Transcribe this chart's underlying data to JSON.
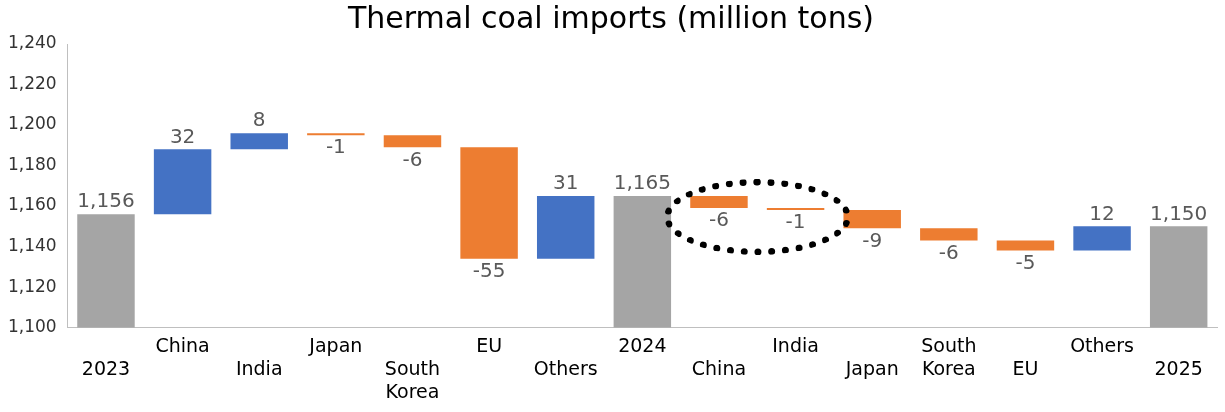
{
  "chart_data": {
    "type": "bar",
    "title": "Thermal coal imports (million tons)",
    "categories": [
      "2023",
      "China",
      "India",
      "Japan",
      "South Korea",
      "EU",
      "Others",
      "2024",
      "China",
      "India",
      "Japan",
      "South Korea",
      "EU",
      "Others",
      "2025"
    ],
    "values": [
      1156,
      32,
      8,
      -1,
      -6,
      -55,
      31,
      1165,
      -6,
      -1,
      -9,
      -6,
      -5,
      12,
      1150
    ],
    "base": [
      null,
      1156,
      1188,
      1196,
      1195,
      1189,
      1134,
      null,
      1165,
      1159,
      1158,
      1149,
      1143,
      1138,
      null
    ],
    "colors": [
      "#a5a5a5",
      "#4472c4",
      "#4472c4",
      "#ed7d31",
      "#ed7d31",
      "#ed7d31",
      "#4472c4",
      "#a5a5a5",
      "#ed7d31",
      "#ed7d31",
      "#ed7d31",
      "#ed7d31",
      "#ed7d31",
      "#4472c4",
      "#a5a5a5"
    ],
    "value_labels": [
      "1,156",
      "32",
      "8",
      "-1",
      "-6",
      "-55",
      "31",
      "1,165",
      "-6",
      "-1",
      "-9",
      "-6",
      "-5",
      "12",
      "1,150"
    ],
    "ylim": [
      1100,
      1240
    ],
    "yticks": [
      {
        "value": 1100,
        "label": "1,100"
      },
      {
        "value": 1120,
        "label": "1,120"
      },
      {
        "value": 1140,
        "label": "1,140"
      },
      {
        "value": 1160,
        "label": "1,160"
      },
      {
        "value": 1180,
        "label": "1,180"
      },
      {
        "value": 1200,
        "label": "1,200"
      },
      {
        "value": 1220,
        "label": "1,220"
      },
      {
        "value": 1240,
        "label": "1,240"
      }
    ],
    "grid": false,
    "legend": false
  }
}
